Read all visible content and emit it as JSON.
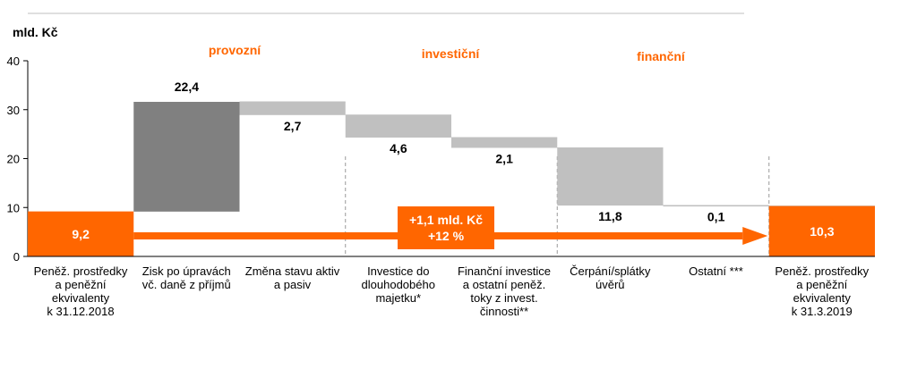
{
  "colors": {
    "accent": "#FF6600",
    "dark_bar": "#808080",
    "light_bar": "#C0C0C0",
    "group_label": "#FF6600"
  },
  "unit_label": "mld. Kč",
  "groups": [
    {
      "label": "provozní"
    },
    {
      "label": "investiční"
    },
    {
      "label": "finanční"
    }
  ],
  "summary": {
    "line1": "+1,1 mld. Kč",
    "line2": "+12 %"
  },
  "chart_data": {
    "type": "waterfall",
    "ylim": [
      0,
      40
    ],
    "yticks": [
      "0",
      "10",
      "20",
      "30",
      "40"
    ],
    "ytick_values": [
      0,
      10,
      20,
      30,
      40
    ],
    "bars": [
      {
        "category": "Peněž. prostředky a peněžní ekvivalenty k 31.12.2018",
        "lines": [
          "Peněž. prostředky",
          "a peněžní",
          "ekvivalenty",
          "k 31.12.2018"
        ],
        "base": 0,
        "top": 9.2,
        "label": "9,2",
        "kind": "total"
      },
      {
        "category": "Zisk po úpravách vč. daně z příjmů",
        "lines": [
          "Zisk po úpravách",
          "vč. daně z příjmů"
        ],
        "base": 9.2,
        "top": 31.6,
        "label": "22,4",
        "kind": "increase"
      },
      {
        "category": "Změna stavu aktiv a pasiv",
        "lines": [
          "Změna stavu aktiv",
          "a pasiv"
        ],
        "base": 28.9,
        "top": 31.6,
        "label": "2,7",
        "kind": "decrease"
      },
      {
        "category": "Investice do dlouhodobého majetku*",
        "lines": [
          "Investice do",
          "dlouhodobého",
          "majetku*"
        ],
        "base": 24.3,
        "top": 28.9,
        "label": "4,6",
        "kind": "decrease"
      },
      {
        "category": "Finanční investice a ostatní peněž. toky z invest. činnosti**",
        "lines": [
          "Finanční investice",
          "a ostatní peněž.",
          "toky z invest.",
          "činnosti**"
        ],
        "base": 22.2,
        "top": 24.3,
        "label": "2,1",
        "kind": "decrease"
      },
      {
        "category": "Čerpání/splátky úvěrů",
        "lines": [
          "Čerpání/splátky",
          "úvěrů"
        ],
        "base": 10.4,
        "top": 22.2,
        "label": "11,8",
        "kind": "decrease"
      },
      {
        "category": "Ostatní ***",
        "lines": [
          "Ostatní ***"
        ],
        "base": 10.3,
        "top": 10.4,
        "label": "0,1",
        "kind": "decrease"
      },
      {
        "category": "Peněž. prostředky a peněžní ekvivalenty k 31.3.2019",
        "lines": [
          "Peněž. prostředky",
          "a peněžní",
          "ekvivalenty",
          "k 31.3.2019"
        ],
        "base": 0,
        "top": 10.3,
        "label": "10,3",
        "kind": "total"
      }
    ]
  }
}
